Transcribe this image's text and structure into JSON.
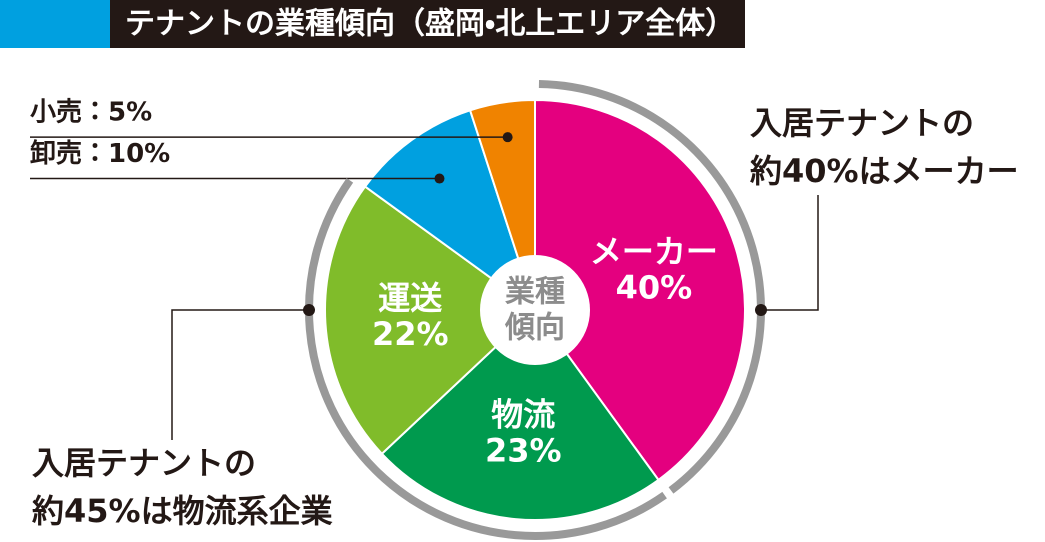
{
  "chart_data": {
    "type": "pie",
    "title": "テナントの業種傾向（盛岡・北上エリア全体）",
    "center_label": [
      "業種",
      "傾向"
    ],
    "categories": [
      "メーカー",
      "物流",
      "運送",
      "卸売",
      "小売"
    ],
    "values": [
      40,
      23,
      22,
      10,
      5
    ],
    "value_labels": [
      "40%",
      "23%",
      "22%",
      "10%",
      "5%"
    ],
    "outside_labels": [
      "卸売：10%",
      "小売：5%"
    ],
    "colors": [
      "#e4007f",
      "#009a4e",
      "#80bc2a",
      "#00a0e0",
      "#f08300"
    ],
    "annotations": [
      {
        "lines": [
          "入居テナントの",
          "約40%はメーカー"
        ]
      },
      {
        "lines": [
          "入居テナントの",
          "約45%は物流系企業"
        ]
      }
    ]
  }
}
